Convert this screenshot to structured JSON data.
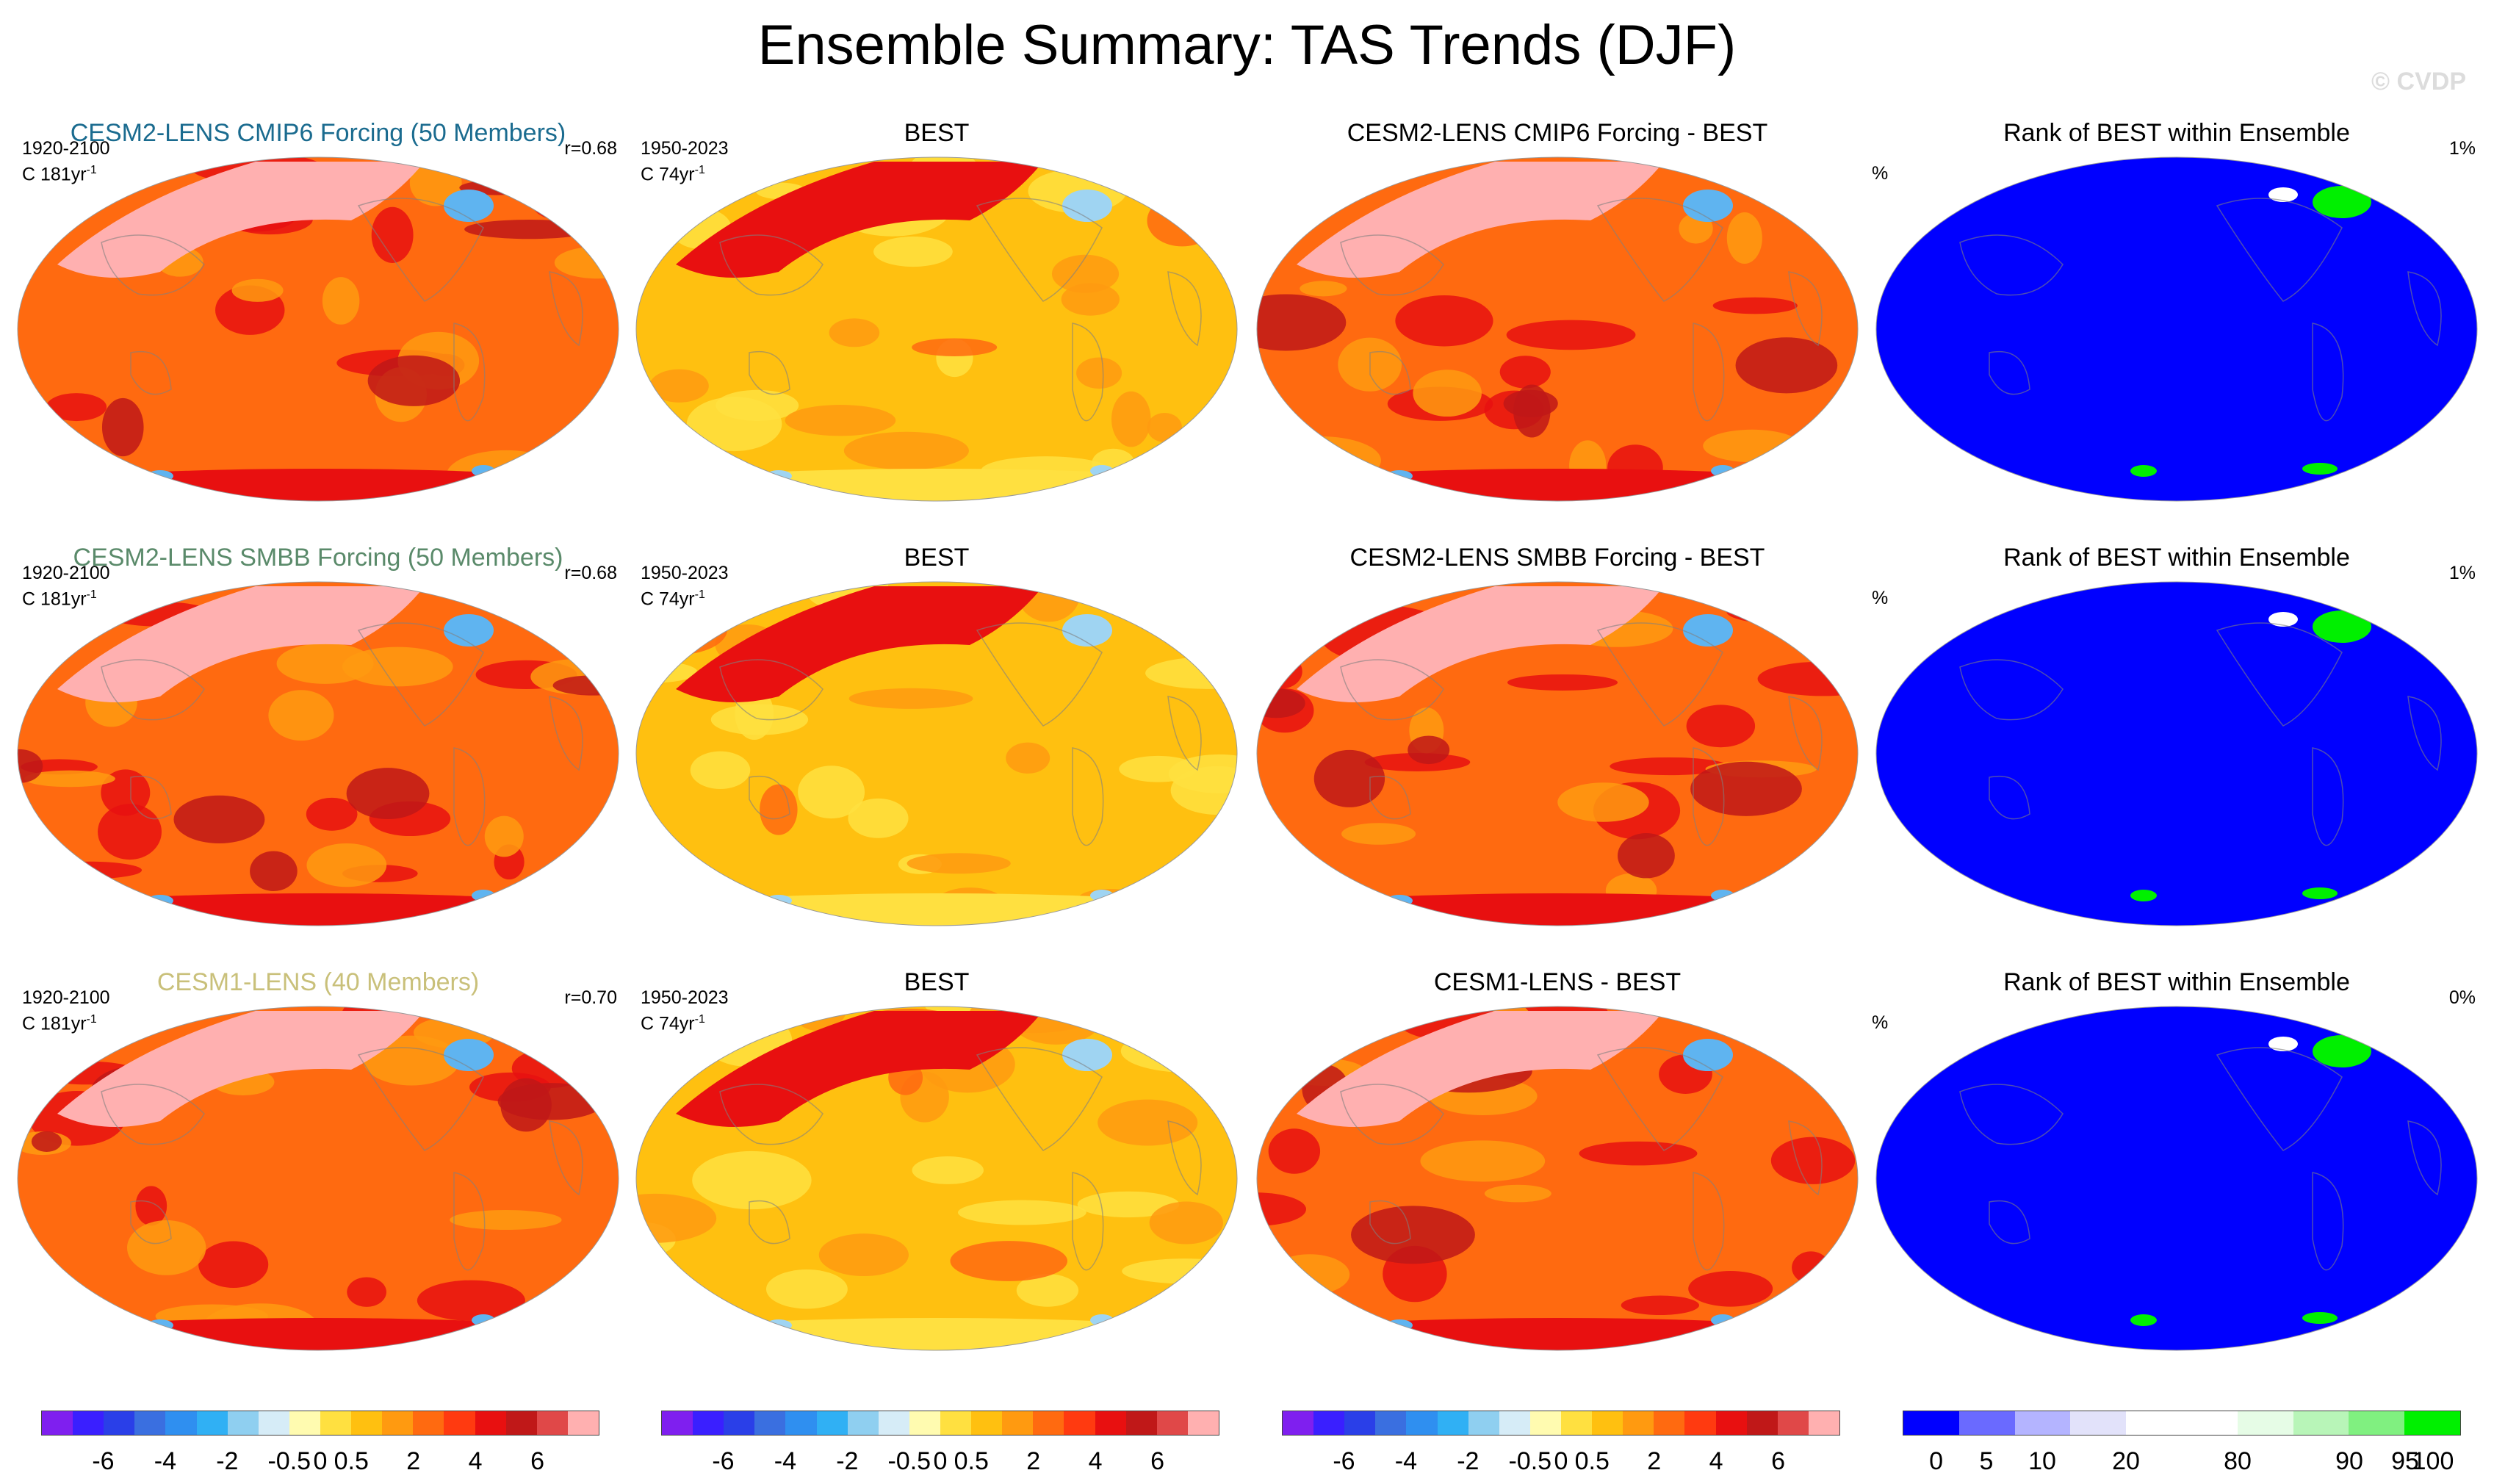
{
  "title": "Ensemble Summary: TAS Trends (DJF)",
  "watermark": "© CVDP",
  "colors": {
    "model_title_1": "#1a6b8f",
    "model_title_2": "#5a8a6a",
    "model_title_3": "#c9c07a",
    "rank_ocean": "#0000ff"
  },
  "rows": [
    {
      "model": {
        "title": "CESM2-LENS CMIP6 Forcing (50 Members)",
        "years": "1920-2100",
        "units": "C 181yr",
        "sup": "-1",
        "r": "r=0.68"
      },
      "obs": {
        "title": "BEST",
        "years": "1950-2023",
        "units": "C 74yr",
        "sup": "-1"
      },
      "diff": {
        "title": "CESM2-LENS CMIP6 Forcing - BEST"
      },
      "rank": {
        "title": "Rank of BEST within Ensemble",
        "left": "%",
        "right": "1%"
      }
    },
    {
      "model": {
        "title": "CESM2-LENS SMBB Forcing (50 Members)",
        "years": "1920-2100",
        "units": "C 181yr",
        "sup": "-1",
        "r": "r=0.68"
      },
      "obs": {
        "title": "BEST",
        "years": "1950-2023",
        "units": "C 74yr",
        "sup": "-1"
      },
      "diff": {
        "title": "CESM2-LENS SMBB Forcing - BEST"
      },
      "rank": {
        "title": "Rank of BEST within Ensemble",
        "left": "%",
        "right": "1%"
      }
    },
    {
      "model": {
        "title": "CESM1-LENS (40 Members)",
        "years": "1920-2100",
        "units": "C 181yr",
        "sup": "-1",
        "r": "r=0.70"
      },
      "obs": {
        "title": "BEST",
        "years": "1950-2023",
        "units": "C 74yr",
        "sup": "-1"
      },
      "diff": {
        "title": "CESM1-LENS - BEST"
      },
      "rank": {
        "title": "Rank of BEST within Ensemble",
        "left": "%",
        "right": "0%"
      }
    }
  ],
  "trend_colorbar": {
    "colors": [
      "#7f1fef",
      "#3a1fff",
      "#2a3fe8",
      "#3a6fe0",
      "#2f8ff0",
      "#30b0f4",
      "#8fcff0",
      "#d6ecf7",
      "#fffbb0",
      "#ffe040",
      "#ffc010",
      "#ff9a10",
      "#ff6a10",
      "#ff3a10",
      "#e81010",
      "#c01818",
      "#e04848",
      "#ffb0b0"
    ],
    "labels": [
      "-6",
      "-4",
      "-2",
      "-0.5",
      "0",
      "0.5",
      "2",
      "4",
      "6"
    ]
  },
  "rank_colorbar": {
    "colors": [
      "#0000ff",
      "#6a6aff",
      "#b4b4ff",
      "#e2e2fa",
      "#ffffff",
      "#ffffff",
      "#e6fce6",
      "#b8f5b8",
      "#80f080",
      "#00f000"
    ],
    "labels": [
      "0",
      "5",
      "10",
      "20",
      "80",
      "90",
      "95",
      "100"
    ]
  }
}
